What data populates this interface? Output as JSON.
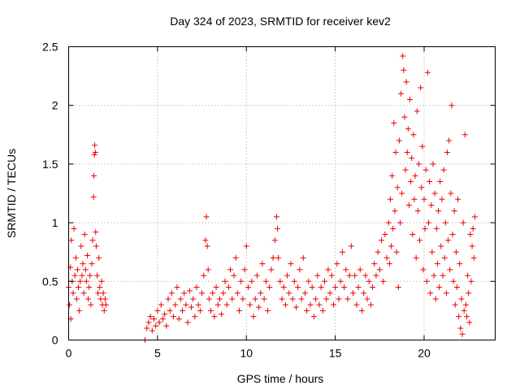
{
  "chart_data": {
    "type": "scatter",
    "title": "Day 324 of 2023, SRMTID for receiver kev2",
    "xlabel": "GPS time / hours",
    "ylabel": "SRMTID / TECUs",
    "xlim": [
      0,
      24
    ],
    "ylim": [
      0,
      2.5
    ],
    "xticks": [
      0,
      5,
      10,
      15,
      20
    ],
    "xtick_labels": [
      "0",
      "5",
      "10",
      "15",
      "20"
    ],
    "yticks": [
      0,
      0.5,
      1,
      1.5,
      2,
      2.5
    ],
    "ytick_labels": [
      "0",
      "0.5",
      "1",
      "1.5",
      "2",
      "2.5"
    ],
    "grid": true,
    "marker": "+",
    "color": "#ee0000",
    "series": [
      {
        "name": "kev2",
        "points": [
          [
            0.0,
            0.45
          ],
          [
            0.05,
            0.3
          ],
          [
            0.1,
            0.62
          ],
          [
            0.12,
            0.18
          ],
          [
            0.15,
            0.85
          ],
          [
            0.2,
            0.5
          ],
          [
            0.25,
            0.4
          ],
          [
            0.3,
            0.95
          ],
          [
            0.35,
            0.55
          ],
          [
            0.4,
            0.7
          ],
          [
            0.45,
            0.35
          ],
          [
            0.5,
            0.6
          ],
          [
            0.55,
            0.45
          ],
          [
            0.6,
            0.25
          ],
          [
            0.65,
            0.5
          ],
          [
            0.7,
            0.8
          ],
          [
            0.75,
            0.55
          ],
          [
            0.8,
            0.65
          ],
          [
            0.85,
            0.4
          ],
          [
            0.9,
            0.9
          ],
          [
            0.95,
            0.6
          ],
          [
            1.0,
            0.5
          ],
          [
            1.05,
            0.72
          ],
          [
            1.1,
            0.35
          ],
          [
            1.15,
            0.45
          ],
          [
            1.2,
            0.55
          ],
          [
            1.25,
            0.3
          ],
          [
            1.3,
            0.65
          ],
          [
            1.35,
            0.85
          ],
          [
            1.4,
            1.22
          ],
          [
            1.42,
            1.4
          ],
          [
            1.45,
            1.58
          ],
          [
            1.47,
            1.66
          ],
          [
            1.5,
            1.6
          ],
          [
            1.52,
            0.92
          ],
          [
            1.55,
            0.8
          ],
          [
            1.6,
            0.55
          ],
          [
            1.65,
            0.4
          ],
          [
            1.7,
            0.7
          ],
          [
            1.75,
            0.45
          ],
          [
            1.8,
            0.35
          ],
          [
            1.85,
            0.5
          ],
          [
            1.9,
            0.3
          ],
          [
            1.95,
            0.4
          ],
          [
            2.0,
            0.25
          ],
          [
            2.05,
            0.35
          ],
          [
            2.1,
            0.3
          ],
          [
            4.3,
            0.0
          ],
          [
            4.4,
            0.1
          ],
          [
            4.5,
            0.15
          ],
          [
            4.6,
            0.2
          ],
          [
            4.7,
            0.08
          ],
          [
            4.8,
            0.18
          ],
          [
            4.9,
            0.12
          ],
          [
            5.0,
            0.25
          ],
          [
            5.1,
            0.15
          ],
          [
            5.2,
            0.3
          ],
          [
            5.3,
            0.18
          ],
          [
            5.4,
            0.22
          ],
          [
            5.5,
            0.12
          ],
          [
            5.6,
            0.35
          ],
          [
            5.7,
            0.25
          ],
          [
            5.8,
            0.4
          ],
          [
            5.9,
            0.2
          ],
          [
            6.0,
            0.3
          ],
          [
            6.1,
            0.45
          ],
          [
            6.2,
            0.18
          ],
          [
            6.3,
            0.35
          ],
          [
            6.4,
            0.25
          ],
          [
            6.5,
            0.4
          ],
          [
            6.6,
            0.3
          ],
          [
            6.7,
            0.15
          ],
          [
            6.8,
            0.42
          ],
          [
            6.9,
            0.28
          ],
          [
            7.0,
            0.35
          ],
          [
            7.1,
            0.2
          ],
          [
            7.2,
            0.45
          ],
          [
            7.3,
            0.3
          ],
          [
            7.4,
            0.25
          ],
          [
            7.5,
            0.4
          ],
          [
            7.6,
            0.55
          ],
          [
            7.7,
            0.85
          ],
          [
            7.75,
            1.05
          ],
          [
            7.8,
            0.8
          ],
          [
            7.85,
            0.6
          ],
          [
            7.9,
            0.35
          ],
          [
            8.0,
            0.25
          ],
          [
            8.1,
            0.4
          ],
          [
            8.2,
            0.2
          ],
          [
            8.3,
            0.45
          ],
          [
            8.4,
            0.3
          ],
          [
            8.5,
            0.35
          ],
          [
            8.6,
            0.22
          ],
          [
            8.7,
            0.4
          ],
          [
            8.8,
            0.5
          ],
          [
            8.9,
            0.3
          ],
          [
            9.0,
            0.45
          ],
          [
            9.1,
            0.6
          ],
          [
            9.2,
            0.35
          ],
          [
            9.3,
            0.55
          ],
          [
            9.4,
            0.7
          ],
          [
            9.5,
            0.4
          ],
          [
            9.6,
            0.25
          ],
          [
            9.7,
            0.5
          ],
          [
            9.8,
            0.35
          ],
          [
            9.9,
            0.6
          ],
          [
            10.0,
            0.8
          ],
          [
            10.1,
            0.45
          ],
          [
            10.2,
            0.3
          ],
          [
            10.3,
            0.5
          ],
          [
            10.4,
            0.2
          ],
          [
            10.5,
            0.35
          ],
          [
            10.6,
            0.55
          ],
          [
            10.7,
            0.28
          ],
          [
            10.8,
            0.4
          ],
          [
            10.9,
            0.65
          ],
          [
            11.0,
            0.35
          ],
          [
            11.1,
            0.5
          ],
          [
            11.2,
            0.25
          ],
          [
            11.3,
            0.45
          ],
          [
            11.4,
            0.6
          ],
          [
            11.5,
            0.7
          ],
          [
            11.6,
            0.85
          ],
          [
            11.7,
            1.05
          ],
          [
            11.75,
            0.95
          ],
          [
            11.8,
            0.7
          ],
          [
            11.9,
            0.5
          ],
          [
            12.0,
            0.35
          ],
          [
            12.1,
            0.45
          ],
          [
            12.2,
            0.3
          ],
          [
            12.3,
            0.55
          ],
          [
            12.4,
            0.4
          ],
          [
            12.5,
            0.65
          ],
          [
            12.6,
            0.35
          ],
          [
            12.7,
            0.5
          ],
          [
            12.8,
            0.28
          ],
          [
            12.9,
            0.45
          ],
          [
            13.0,
            0.6
          ],
          [
            13.1,
            0.35
          ],
          [
            13.2,
            0.7
          ],
          [
            13.3,
            0.4
          ],
          [
            13.4,
            0.25
          ],
          [
            13.5,
            0.5
          ],
          [
            13.6,
            0.3
          ],
          [
            13.7,
            0.45
          ],
          [
            13.8,
            0.2
          ],
          [
            13.9,
            0.35
          ],
          [
            14.0,
            0.55
          ],
          [
            14.1,
            0.3
          ],
          [
            14.2,
            0.45
          ],
          [
            14.3,
            0.25
          ],
          [
            14.4,
            0.5
          ],
          [
            14.5,
            0.35
          ],
          [
            14.6,
            0.6
          ],
          [
            14.7,
            0.4
          ],
          [
            14.8,
            0.55
          ],
          [
            14.9,
            0.3
          ],
          [
            15.0,
            0.45
          ],
          [
            15.1,
            0.65
          ],
          [
            15.2,
            0.35
          ],
          [
            15.3,
            0.5
          ],
          [
            15.4,
            0.75
          ],
          [
            15.5,
            0.45
          ],
          [
            15.6,
            0.6
          ],
          [
            15.7,
            0.35
          ],
          [
            15.8,
            0.55
          ],
          [
            15.9,
            0.8
          ],
          [
            16.0,
            0.4
          ],
          [
            16.1,
            0.55
          ],
          [
            16.2,
            0.3
          ],
          [
            16.3,
            0.45
          ],
          [
            16.4,
            0.6
          ],
          [
            16.5,
            0.25
          ],
          [
            16.6,
            0.4
          ],
          [
            16.7,
            0.55
          ],
          [
            16.8,
            0.35
          ],
          [
            16.9,
            0.5
          ],
          [
            17.0,
            0.3
          ],
          [
            17.1,
            0.45
          ],
          [
            17.2,
            0.65
          ],
          [
            17.3,
            0.55
          ],
          [
            17.4,
            0.75
          ],
          [
            17.5,
            0.6
          ],
          [
            17.6,
            0.85
          ],
          [
            17.7,
            0.5
          ],
          [
            17.8,
            0.9
          ],
          [
            17.9,
            0.7
          ],
          [
            18.0,
            1.0
          ],
          [
            18.05,
            0.65
          ],
          [
            18.1,
            1.2
          ],
          [
            18.15,
            0.8
          ],
          [
            18.2,
            1.4
          ],
          [
            18.25,
            0.95
          ],
          [
            18.3,
            1.85
          ],
          [
            18.35,
            1.1
          ],
          [
            18.4,
            1.6
          ],
          [
            18.45,
            0.75
          ],
          [
            18.5,
            1.3
          ],
          [
            18.55,
            0.45
          ],
          [
            18.6,
            1.7
          ],
          [
            18.65,
            1.0
          ],
          [
            18.7,
            2.1
          ],
          [
            18.75,
            1.25
          ],
          [
            18.8,
            2.42
          ],
          [
            18.85,
            2.3
          ],
          [
            18.9,
            1.9
          ],
          [
            18.95,
            1.45
          ],
          [
            19.0,
            2.2
          ],
          [
            19.05,
            1.6
          ],
          [
            19.1,
            1.8
          ],
          [
            19.15,
            1.15
          ],
          [
            19.2,
            2.05
          ],
          [
            19.25,
            1.35
          ],
          [
            19.3,
            1.55
          ],
          [
            19.35,
            0.9
          ],
          [
            19.4,
            1.75
          ],
          [
            19.45,
            1.2
          ],
          [
            19.5,
            1.4
          ],
          [
            19.55,
            0.7
          ],
          [
            19.6,
            1.95
          ],
          [
            19.65,
            1.1
          ],
          [
            19.7,
            1.5
          ],
          [
            19.75,
            0.85
          ],
          [
            19.8,
            2.15
          ],
          [
            19.85,
            1.3
          ],
          [
            19.9,
            1.65
          ],
          [
            19.95,
            0.6
          ],
          [
            20.0,
            1.2
          ],
          [
            20.05,
            0.95
          ],
          [
            20.1,
            1.45
          ],
          [
            20.15,
            0.5
          ],
          [
            20.2,
            2.28
          ],
          [
            20.25,
            1.0
          ],
          [
            20.3,
            1.35
          ],
          [
            20.35,
            0.4
          ],
          [
            20.4,
            1.15
          ],
          [
            20.45,
            0.75
          ],
          [
            20.5,
            1.5
          ],
          [
            20.55,
            0.55
          ],
          [
            20.6,
            1.25
          ],
          [
            20.65,
            0.35
          ],
          [
            20.7,
            0.95
          ],
          [
            20.75,
            0.65
          ],
          [
            20.8,
            1.1
          ],
          [
            20.85,
            0.45
          ],
          [
            20.9,
            1.35
          ],
          [
            20.95,
            0.8
          ],
          [
            21.0,
            1.2
          ],
          [
            21.05,
            0.55
          ],
          [
            21.1,
            1.45
          ],
          [
            21.15,
            0.7
          ],
          [
            21.2,
            1.0
          ],
          [
            21.25,
            0.4
          ],
          [
            21.3,
            1.6
          ],
          [
            21.35,
            0.85
          ],
          [
            21.4,
            1.7
          ],
          [
            21.45,
            0.6
          ],
          [
            21.5,
            1.25
          ],
          [
            21.55,
            2.0
          ],
          [
            21.6,
            0.9
          ],
          [
            21.65,
            0.5
          ],
          [
            21.7,
            1.1
          ],
          [
            21.75,
            0.3
          ],
          [
            21.8,
            0.75
          ],
          [
            21.85,
            0.45
          ],
          [
            21.9,
            1.2
          ],
          [
            21.95,
            0.2
          ],
          [
            22.0,
            0.65
          ],
          [
            22.05,
            0.1
          ],
          [
            22.1,
            0.35
          ],
          [
            22.15,
            0.05
          ],
          [
            22.2,
            1.0
          ],
          [
            22.25,
            0.25
          ],
          [
            22.3,
            1.75
          ],
          [
            22.35,
            0.3
          ],
          [
            22.4,
            0.2
          ],
          [
            22.45,
            0.55
          ],
          [
            22.5,
            0.4
          ],
          [
            22.55,
            0.15
          ],
          [
            22.6,
            0.9
          ],
          [
            22.65,
            0.5
          ],
          [
            22.7,
            0.8
          ],
          [
            22.75,
            0.95
          ],
          [
            22.8,
            0.7
          ],
          [
            22.85,
            1.05
          ]
        ]
      }
    ]
  }
}
